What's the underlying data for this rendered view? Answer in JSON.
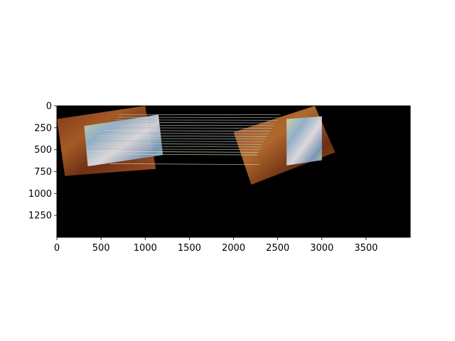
{
  "chart_data": {
    "type": "image",
    "title": "",
    "xlabel": "",
    "ylabel": "",
    "xlim": [
      0,
      4000
    ],
    "ylim": [
      1500,
      0
    ],
    "xticks": [
      0,
      500,
      1000,
      1500,
      2000,
      2500,
      3000,
      3500
    ],
    "yticks": [
      0,
      250,
      500,
      750,
      1000,
      1250
    ],
    "xtick_labels": [
      "0",
      "500",
      "1000",
      "1500",
      "2000",
      "2500",
      "3000",
      "3500"
    ],
    "ytick_labels": [
      "0",
      "250",
      "500",
      "750",
      "1000",
      "1250"
    ],
    "background_color": "#000000",
    "left_image": {
      "corners": [
        [
          0,
          150
        ],
        [
          1000,
          0
        ],
        [
          1120,
          720
        ],
        [
          90,
          800
        ]
      ],
      "box_corners": [
        [
          310,
          230
        ],
        [
          1150,
          100
        ],
        [
          1200,
          560
        ],
        [
          350,
          690
        ]
      ]
    },
    "right_image": {
      "corners": [
        [
          2000,
          300
        ],
        [
          2920,
          0
        ],
        [
          3150,
          530
        ],
        [
          2200,
          900
        ]
      ],
      "box_corners": [
        [
          2600,
          150
        ],
        [
          3000,
          120
        ],
        [
          3000,
          620
        ],
        [
          2600,
          680
        ]
      ]
    },
    "match_lines": [
      {
        "x1": 700,
        "y1": 100,
        "x2": 2530,
        "y2": 100,
        "color": "#c8a0c8"
      },
      {
        "x1": 680,
        "y1": 130,
        "x2": 2540,
        "y2": 135,
        "color": "#a0d0a0"
      },
      {
        "x1": 650,
        "y1": 160,
        "x2": 2500,
        "y2": 165,
        "color": "#d0a090"
      },
      {
        "x1": 620,
        "y1": 190,
        "x2": 2480,
        "y2": 195,
        "color": "#90c0e0"
      },
      {
        "x1": 600,
        "y1": 220,
        "x2": 2460,
        "y2": 225,
        "color": "#e0c090"
      },
      {
        "x1": 570,
        "y1": 250,
        "x2": 2440,
        "y2": 255,
        "color": "#b0b0e0"
      },
      {
        "x1": 540,
        "y1": 280,
        "x2": 2420,
        "y2": 290,
        "color": "#c0e0c0"
      },
      {
        "x1": 510,
        "y1": 310,
        "x2": 2400,
        "y2": 320,
        "color": "#e0a0b0"
      },
      {
        "x1": 480,
        "y1": 340,
        "x2": 2380,
        "y2": 350,
        "color": "#a0e0e0"
      },
      {
        "x1": 450,
        "y1": 370,
        "x2": 2360,
        "y2": 380,
        "color": "#d0d090"
      },
      {
        "x1": 420,
        "y1": 400,
        "x2": 2340,
        "y2": 410,
        "color": "#c0a0e0"
      },
      {
        "x1": 400,
        "y1": 430,
        "x2": 2320,
        "y2": 440,
        "color": "#90e0a0"
      },
      {
        "x1": 380,
        "y1": 460,
        "x2": 2300,
        "y2": 470,
        "color": "#e0b0a0"
      },
      {
        "x1": 360,
        "y1": 490,
        "x2": 2290,
        "y2": 500,
        "color": "#a0b0e0"
      },
      {
        "x1": 350,
        "y1": 520,
        "x2": 2280,
        "y2": 530,
        "color": "#e0e0a0"
      },
      {
        "x1": 340,
        "y1": 550,
        "x2": 2270,
        "y2": 560,
        "color": "#b0e0d0"
      },
      {
        "x1": 600,
        "y1": 660,
        "x2": 2300,
        "y2": 670,
        "color": "#c8c8c8"
      }
    ]
  }
}
